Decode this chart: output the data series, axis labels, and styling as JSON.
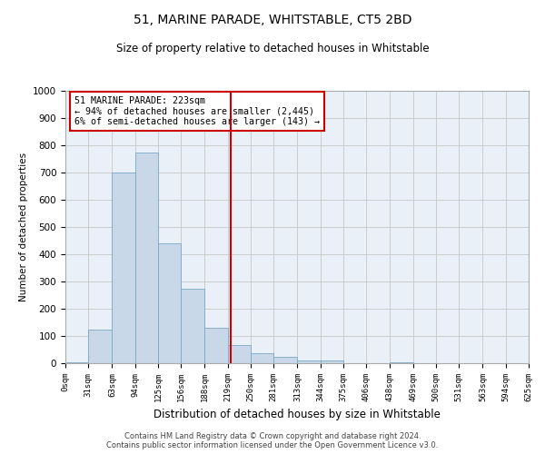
{
  "title": "51, MARINE PARADE, WHITSTABLE, CT5 2BD",
  "subtitle": "Size of property relative to detached houses in Whitstable",
  "xlabel": "Distribution of detached houses by size in Whitstable",
  "ylabel": "Number of detached properties",
  "bar_color": "#c8d8e8",
  "bar_edge_color": "#7aa8c8",
  "grid_color": "#cccccc",
  "background_color": "#eaf0f8",
  "vline_x": 223,
  "vline_color": "#cc0000",
  "annotation_box_color": "#cc0000",
  "annotation_lines": [
    "51 MARINE PARADE: 223sqm",
    "← 94% of detached houses are smaller (2,445)",
    "6% of semi-detached houses are larger (143) →"
  ],
  "bin_edges": [
    0,
    31,
    63,
    94,
    125,
    156,
    188,
    219,
    250,
    281,
    313,
    344,
    375,
    406,
    438,
    469,
    500,
    531,
    563,
    594,
    625
  ],
  "bar_heights": [
    5,
    125,
    700,
    775,
    440,
    275,
    130,
    68,
    38,
    22,
    10,
    10,
    0,
    0,
    5,
    0,
    0,
    0,
    0,
    0
  ],
  "yticks": [
    0,
    100,
    200,
    300,
    400,
    500,
    600,
    700,
    800,
    900,
    1000
  ],
  "ylim": [
    0,
    1000
  ],
  "xlim": [
    0,
    625
  ],
  "footer_lines": [
    "Contains HM Land Registry data © Crown copyright and database right 2024.",
    "Contains public sector information licensed under the Open Government Licence v3.0."
  ]
}
